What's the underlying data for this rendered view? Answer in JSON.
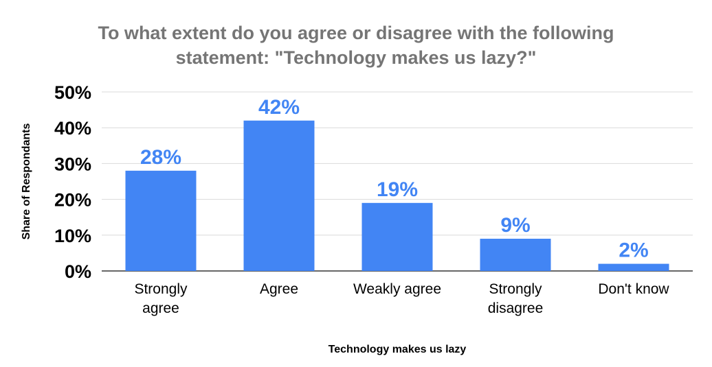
{
  "chart_data": {
    "type": "bar",
    "title_lines": [
      "To what extent do you agree or disagree with the following",
      "statement: \"Technology makes us lazy?\""
    ],
    "xlabel": "Technology makes us lazy",
    "ylabel": "Share of Respondants",
    "categories": [
      [
        "Strongly",
        "agree"
      ],
      [
        "Agree"
      ],
      [
        "Weakly agree"
      ],
      [
        "Strongly",
        "disagree"
      ],
      [
        "Don't know"
      ]
    ],
    "values": [
      28,
      42,
      19,
      9,
      2
    ],
    "data_labels": [
      "28%",
      "42%",
      "19%",
      "9%",
      "2%"
    ],
    "yticks": [
      0,
      10,
      20,
      30,
      40,
      50
    ],
    "ytick_labels": [
      "0%",
      "10%",
      "20%",
      "30%",
      "40%",
      "50%"
    ],
    "ylim": [
      0,
      50
    ],
    "grid": true,
    "legend": "none",
    "colors": {
      "bar": "#4285f4",
      "data_label": "#4285f4",
      "title": "#757575",
      "grid": "#d9d9d9",
      "axis": "#333333"
    }
  }
}
